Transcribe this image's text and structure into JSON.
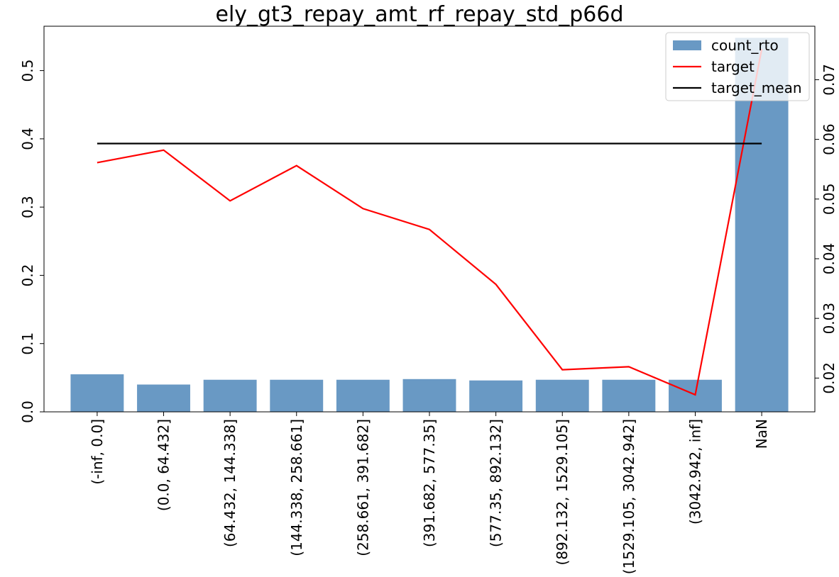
{
  "chart_data": {
    "type": "bar",
    "title": "ely_gt3_repay_amt_rf_repay_std_p66d",
    "xlabel": "",
    "ylabel": "",
    "categories": [
      "(-inf, 0.0]",
      "(0.0, 64.432]",
      "(64.432, 144.338]",
      "(144.338, 258.661]",
      "(258.661, 391.682]",
      "(391.682, 577.35]",
      "(577.35, 892.132]",
      "(892.132, 1529.105]",
      "(1529.105, 3042.942]",
      "(3042.942, inf]",
      "NaN"
    ],
    "series": [
      {
        "name": "count_rto",
        "type": "bar",
        "axis": "left",
        "color": "#4f87ba",
        "values": [
          0.055,
          0.04,
          0.047,
          0.047,
          0.047,
          0.048,
          0.046,
          0.047,
          0.047,
          0.047,
          0.548
        ]
      },
      {
        "name": "target",
        "type": "line",
        "axis": "right",
        "color": "#ff0000",
        "values": [
          0.0561,
          0.0582,
          0.0497,
          0.0556,
          0.0484,
          0.0449,
          0.0357,
          0.0214,
          0.0219,
          0.0172,
          0.0751
        ]
      },
      {
        "name": "target_mean",
        "type": "line",
        "axis": "right",
        "color": "#000000",
        "values": [
          0.0593,
          0.0593,
          0.0593,
          0.0593,
          0.0593,
          0.0593,
          0.0593,
          0.0593,
          0.0593,
          0.0593,
          0.0593
        ]
      }
    ],
    "left_axis": {
      "ylim": [
        0,
        0.565
      ],
      "ticks": [
        0,
        0.1,
        0.2,
        0.3,
        0.4,
        0.5
      ],
      "tick_labels": [
        "0.0",
        "0.1",
        "0.2",
        "0.3",
        "0.4",
        "0.5"
      ]
    },
    "right_axis": {
      "ylim": [
        0.01434,
        0.07896
      ],
      "ticks": [
        0.02,
        0.03,
        0.04,
        0.05,
        0.06,
        0.07
      ],
      "tick_labels": [
        "0.02",
        "0.03",
        "0.04",
        "0.05",
        "0.06",
        "0.07"
      ]
    },
    "legend": {
      "position": "top-right",
      "entries": [
        "count_rto",
        "target",
        "target_mean"
      ]
    },
    "grid": false
  }
}
